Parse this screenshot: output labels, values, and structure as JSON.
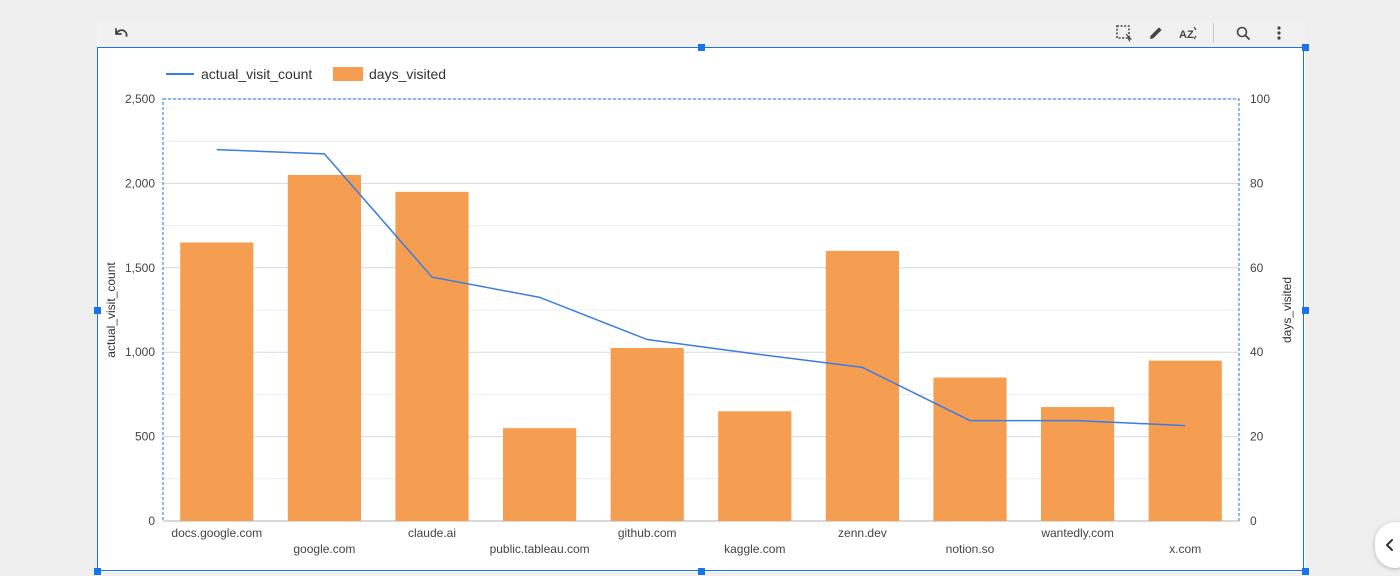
{
  "toolbar": {
    "undo_icon": "undo-icon",
    "select_icon": "marquee-select-icon",
    "edit_icon": "pencil-icon",
    "sort_icon": "sort-az-icon",
    "zoom_icon": "zoom-icon",
    "more_icon": "more-vert-icon"
  },
  "colors": {
    "bar": "#f59e52",
    "line": "#3b7de0",
    "grid": "#e0e0e0",
    "selection": "#1a73e8"
  },
  "chart_data": {
    "type": "bar",
    "categories": [
      "docs.google.com",
      "google.com",
      "claude.ai",
      "public.tableau.com",
      "github.com",
      "kaggle.com",
      "zenn.dev",
      "notion.so",
      "wantedly.com",
      "x.com"
    ],
    "series": [
      {
        "name": "actual_visit_count",
        "type": "line",
        "axis": "left",
        "values": [
          2200,
          2175,
          1445,
          1325,
          1075,
          990,
          910,
          595,
          595,
          565
        ]
      },
      {
        "name": "days_visited",
        "type": "bar",
        "axis": "right",
        "values": [
          66,
          82,
          78,
          22,
          41,
          26,
          64,
          34,
          27,
          38
        ]
      }
    ],
    "ylabel": "actual_visit_count",
    "y2label": "days_visited",
    "ylim": [
      0,
      2500
    ],
    "y2lim": [
      0,
      100
    ],
    "yticks": [
      "0",
      "500",
      "1,000",
      "1,500",
      "2,000",
      "2,500"
    ],
    "y2ticks": [
      "0",
      "20",
      "40",
      "60",
      "80",
      "100"
    ],
    "legend_position": "top-left",
    "grid": true
  }
}
